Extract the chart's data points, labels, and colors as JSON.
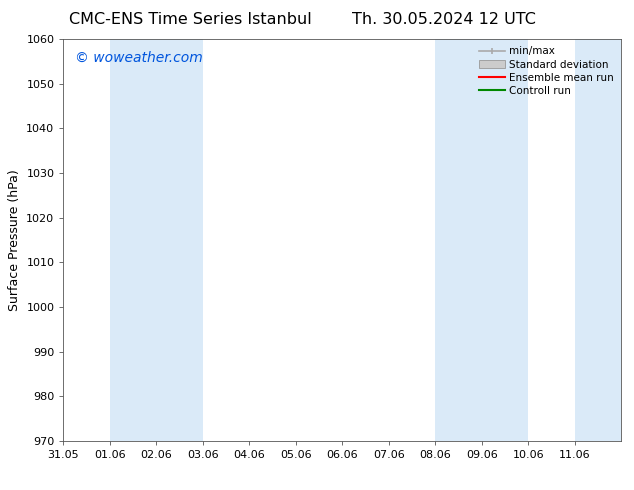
{
  "title_left": "CMC-ENS Time Series Istanbul",
  "title_right": "Th. 30.05.2024 12 UTC",
  "ylabel": "Surface Pressure (hPa)",
  "watermark": "© woweather.com",
  "watermark_color": "#0055dd",
  "xlim_left": 0,
  "xlim_right": 12,
  "ylim_bottom": 970,
  "ylim_top": 1060,
  "yticks": [
    970,
    980,
    990,
    1000,
    1010,
    1020,
    1030,
    1040,
    1050,
    1060
  ],
  "xtick_labels": [
    "31.05",
    "01.06",
    "02.06",
    "03.06",
    "04.06",
    "05.06",
    "06.06",
    "07.06",
    "08.06",
    "09.06",
    "10.06",
    "11.06"
  ],
  "xtick_positions": [
    0,
    1,
    2,
    3,
    4,
    5,
    6,
    7,
    8,
    9,
    10,
    11
  ],
  "shaded_regions": [
    {
      "xmin": 1,
      "xmax": 3,
      "color": "#daeaf8"
    },
    {
      "xmin": 8,
      "xmax": 10,
      "color": "#daeaf8"
    },
    {
      "xmin": 11,
      "xmax": 12,
      "color": "#daeaf8"
    }
  ],
  "legend_entries": [
    {
      "label": "min/max",
      "color": "#aaaaaa",
      "type": "minmax"
    },
    {
      "label": "Standard deviation",
      "color": "#cccccc",
      "type": "stddev"
    },
    {
      "label": "Ensemble mean run",
      "color": "#ff0000",
      "type": "line"
    },
    {
      "label": "Controll run",
      "color": "#008800",
      "type": "line"
    }
  ],
  "bg_color": "#ffffff",
  "axis_color": "#000000",
  "title_fontsize": 11.5,
  "label_fontsize": 9,
  "tick_fontsize": 8,
  "watermark_fontsize": 10,
  "legend_fontsize": 7.5
}
